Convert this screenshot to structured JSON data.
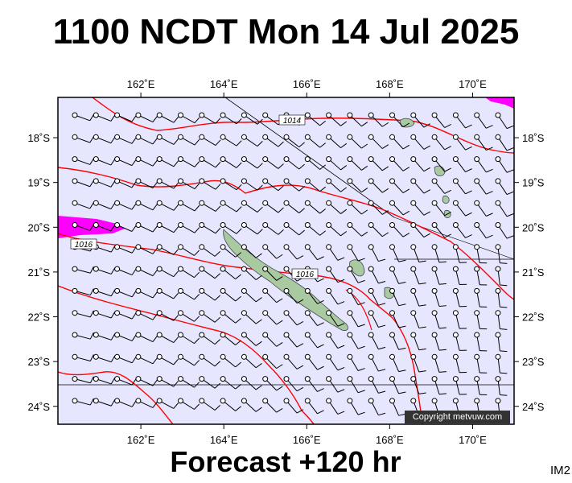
{
  "title": "1100 NCDT Mon 14 Jul 2025",
  "footer": "Forecast +120 hr",
  "image_tag": "IM2",
  "copyright": "Copyright metvuw.com",
  "colors": {
    "ocean": "#e6e6ff",
    "isobar": "#ff0000",
    "land": "#a9c9a0",
    "high_wind": "#ff00ff",
    "frame": "#000000"
  },
  "map": {
    "lon_min": 160.0,
    "lon_max": 171.0,
    "lat_min": -24.4,
    "lat_max": -17.1,
    "lon_ticks": [
      162,
      164,
      166,
      168,
      170
    ],
    "lon_labels": [
      "162˚E",
      "164˚E",
      "166˚E",
      "168˚E",
      "170˚E"
    ],
    "lat_ticks": [
      -18,
      -19,
      -20,
      -21,
      -22,
      -23,
      -24
    ],
    "lat_labels": [
      "18˚S",
      "19˚S",
      "20˚S",
      "21˚S",
      "22˚S",
      "23˚S",
      "24˚S"
    ],
    "isobar_labels": [
      "1014",
      "1016",
      "1016"
    ]
  }
}
